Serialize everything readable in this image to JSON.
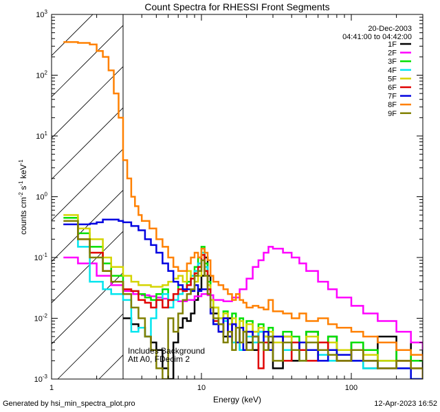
{
  "chart_data": {
    "type": "line",
    "title": "Count Spectra for RHESSI Front Segments",
    "xlabel": "Energy (keV)",
    "ylabel": "counts cm^-2 s^-1 keV^-1",
    "ylabel_parts": {
      "main": "counts cm",
      "e1": "-2",
      "s": " s",
      "e2": "-1",
      "k": " keV",
      "e3": "-1"
    },
    "xscale": "log",
    "yscale": "log",
    "xlim": [
      1,
      300
    ],
    "ylim": [
      0.001,
      1000
    ],
    "x_ticks": [
      {
        "value": 1,
        "label": "1"
      },
      {
        "value": 10,
        "label": "10"
      },
      {
        "value": 100,
        "label": "100"
      }
    ],
    "y_ticks": [
      {
        "value": 0.001,
        "base": "10",
        "exp": "-3"
      },
      {
        "value": 0.01,
        "base": "10",
        "exp": "-2"
      },
      {
        "value": 0.1,
        "base": "10",
        "exp": "-1"
      },
      {
        "value": 1,
        "base": "10",
        "exp": "0"
      },
      {
        "value": 10,
        "base": "10",
        "exp": "1"
      },
      {
        "value": 100,
        "base": "10",
        "exp": "2"
      },
      {
        "value": 1000,
        "base": "10",
        "exp": "3"
      }
    ],
    "date": "20-Dec-2003",
    "time_range": "04:41:00 to 04:42:00",
    "annotations": [
      "Includes Background",
      "Att A0, FDecim 2"
    ],
    "hatched_below_keV": 3,
    "series": [
      {
        "name": "1F",
        "color": "#000000",
        "x": [
          3,
          3.4,
          3.8,
          4.2,
          4.6,
          5,
          5.5,
          6,
          6.5,
          7,
          7.5,
          8,
          8.5,
          9,
          9.5,
          10,
          10.5,
          11,
          11.5,
          12,
          13,
          14,
          15,
          16,
          17,
          18,
          19,
          20,
          22,
          24,
          26,
          28,
          30,
          35,
          40,
          45,
          50,
          60,
          70,
          80,
          100,
          120,
          150,
          200,
          250,
          300
        ],
        "y": [
          0.01,
          0.008,
          0.007,
          0.005,
          0.004,
          0.003,
          0.0015,
          0.001,
          0.004,
          0.007,
          0.01,
          0.009,
          0.012,
          0.02,
          0.03,
          0.05,
          0.1,
          0.05,
          0.02,
          0.012,
          0.008,
          0.005,
          0.01,
          0.004,
          0.007,
          0.003,
          0.006,
          0.004,
          0.003,
          0.006,
          0.005,
          0.004,
          0.0015,
          0.005,
          0.002,
          0.004,
          0.006,
          0.003,
          0.005,
          0.002,
          0.004,
          0.0015,
          0.005,
          0.002,
          0.004,
          0.001
        ]
      },
      {
        "name": "2F",
        "color": "#ff00ff",
        "x": [
          1.2,
          1.5,
          2,
          2.5,
          3,
          3.5,
          4,
          4.5,
          5,
          5.5,
          6,
          7,
          8,
          9,
          10,
          11,
          12,
          14,
          16,
          18,
          20,
          22,
          24,
          26,
          28,
          30,
          35,
          40,
          45,
          50,
          60,
          70,
          80,
          100,
          120,
          150,
          200,
          250,
          300
        ],
        "y": [
          0.1,
          0.08,
          0.05,
          0.035,
          0.028,
          0.025,
          0.024,
          0.023,
          0.022,
          0.021,
          0.02,
          0.019,
          0.02,
          0.023,
          0.025,
          0.024,
          0.02,
          0.019,
          0.022,
          0.03,
          0.045,
          0.07,
          0.09,
          0.12,
          0.15,
          0.14,
          0.12,
          0.1,
          0.08,
          0.06,
          0.04,
          0.03,
          0.022,
          0.016,
          0.012,
          0.009,
          0.006,
          0.004,
          0.003
        ]
      },
      {
        "name": "3F",
        "color": "#00e000",
        "x": [
          1.2,
          1.5,
          1.8,
          2.2,
          2.5,
          3,
          3.4,
          3.8,
          4.2,
          4.6,
          5,
          5.5,
          6,
          6.5,
          7,
          7.5,
          8,
          8.5,
          9,
          9.5,
          10,
          10.5,
          11,
          11.5,
          12,
          13,
          14,
          15,
          16,
          17,
          18,
          19,
          20,
          22,
          24,
          26,
          28,
          30,
          35,
          40,
          45,
          50,
          60,
          70,
          80,
          100,
          120,
          150,
          200,
          250,
          300
        ],
        "y": [
          0.45,
          0.25,
          0.15,
          0.08,
          0.05,
          0.03,
          0.028,
          0.025,
          0.022,
          0.02,
          0.025,
          0.03,
          0.02,
          0.025,
          0.035,
          0.03,
          0.04,
          0.05,
          0.07,
          0.1,
          0.15,
          0.08,
          0.04,
          0.02,
          0.015,
          0.01,
          0.013,
          0.008,
          0.012,
          0.007,
          0.01,
          0.006,
          0.009,
          0.006,
          0.008,
          0.005,
          0.007,
          0.004,
          0.006,
          0.005,
          0.004,
          0.006,
          0.004,
          0.005,
          0.003,
          0.004,
          0.003,
          0.002,
          0.003,
          0.002,
          0.002
        ]
      },
      {
        "name": "4F",
        "color": "#00e5ee",
        "x": [
          1.2,
          1.5,
          1.8,
          2.2,
          2.5,
          3,
          3.4,
          3.8,
          4.2,
          4.6,
          5,
          5.5,
          6,
          6.5,
          7,
          7.5,
          8,
          8.5,
          9,
          9.5,
          10,
          10.5,
          11,
          11.5,
          12,
          13,
          14,
          15,
          16,
          17,
          18,
          19,
          20,
          22,
          24,
          26,
          28,
          30,
          35,
          40,
          45,
          50,
          60,
          70,
          80,
          100,
          120,
          150,
          200,
          250,
          300
        ],
        "y": [
          0.35,
          0.15,
          0.04,
          0.03,
          0.025,
          0.02,
          0.006,
          0.007,
          0.005,
          0.01,
          0.02,
          0.025,
          0.015,
          0.02,
          0.025,
          0.03,
          0.035,
          0.05,
          0.06,
          0.08,
          0.12,
          0.07,
          0.03,
          0.012,
          0.008,
          0.006,
          0.009,
          0.005,
          0.004,
          0.007,
          0.003,
          0.006,
          0.005,
          0.004,
          0.006,
          0.003,
          0.005,
          0.004,
          0.003,
          0.004,
          0.002,
          0.003,
          0.0025,
          0.002,
          0.003,
          0.002,
          0.0015,
          0.002,
          0.0015,
          0.001,
          0.001
        ]
      },
      {
        "name": "5F",
        "color": "#d4d400",
        "x": [
          1.2,
          1.5,
          1.8,
          2.2,
          2.5,
          3,
          3.4,
          3.8,
          4.2,
          4.6,
          5,
          5.5,
          6,
          6.5,
          7,
          7.5,
          8,
          8.5,
          9,
          9.5,
          10,
          10.5,
          11,
          11.5,
          12,
          13,
          14,
          15,
          16,
          17,
          18,
          19,
          20,
          22,
          24,
          26,
          28,
          30,
          35,
          40,
          45,
          50,
          60,
          70,
          80,
          100,
          120,
          150,
          200,
          250,
          300
        ],
        "y": [
          0.5,
          0.3,
          0.2,
          0.1,
          0.07,
          0.05,
          0.04,
          0.035,
          0.035,
          0.033,
          0.033,
          0.035,
          0.04,
          0.045,
          0.05,
          0.04,
          0.06,
          0.045,
          0.04,
          0.05,
          0.11,
          0.06,
          0.035,
          0.02,
          0.015,
          0.01,
          0.012,
          0.008,
          0.01,
          0.007,
          0.009,
          0.006,
          0.008,
          0.006,
          0.007,
          0.005,
          0.006,
          0.004,
          0.005,
          0.004,
          0.004,
          0.005,
          0.003,
          0.004,
          0.003,
          0.003,
          0.0025,
          0.002,
          0.002,
          0.0015,
          0.001
        ]
      },
      {
        "name": "6F",
        "color": "#e00000",
        "x": [
          1.2,
          1.5,
          1.8,
          2.2,
          2.5,
          3,
          3.4,
          3.8,
          4.2,
          4.6,
          5,
          5.5,
          6,
          6.5,
          7,
          7.5,
          8,
          8.5,
          9,
          9.5,
          10,
          10.5,
          11,
          11.5,
          12,
          13,
          14,
          15,
          16,
          17,
          18,
          19,
          20,
          22,
          24,
          26,
          28,
          30,
          35,
          40,
          45,
          50,
          60,
          70,
          80,
          100,
          120,
          150,
          200,
          250,
          300
        ],
        "y": [
          0.35,
          0.2,
          0.12,
          0.06,
          0.04,
          0.03,
          0.028,
          0.02,
          0.018,
          0.015,
          0.02,
          0.015,
          0.02,
          0.025,
          0.03,
          0.028,
          0.035,
          0.045,
          0.055,
          0.07,
          0.11,
          0.06,
          0.03,
          0.012,
          0.009,
          0.006,
          0.01,
          0.005,
          0.008,
          0.004,
          0.007,
          0.003,
          0.006,
          0.005,
          0.0015,
          0.004,
          0.003,
          0.005,
          0.002,
          0.004,
          0.003,
          0.002,
          0.004,
          0.0025,
          0.002,
          0.003,
          0.002,
          0.0015,
          0.002,
          0.0015,
          0.001
        ]
      },
      {
        "name": "7F",
        "color": "#0000e0",
        "x": [
          1.2,
          1.5,
          1.8,
          2,
          2.2,
          2.5,
          2.8,
          3,
          3.4,
          3.8,
          4.2,
          4.6,
          5,
          5.5,
          6,
          6.5,
          7,
          7.5,
          8,
          8.5,
          9,
          9.5,
          10,
          10.5,
          11,
          11.5,
          12,
          13,
          14,
          15,
          16,
          17,
          18,
          19,
          20,
          22,
          24,
          26,
          28,
          30,
          35,
          40,
          45,
          50,
          60,
          70,
          80,
          100,
          120,
          150,
          200,
          250,
          300
        ],
        "y": [
          0.35,
          0.35,
          0.36,
          0.38,
          0.42,
          0.42,
          0.4,
          0.38,
          0.33,
          0.28,
          0.2,
          0.16,
          0.12,
          0.08,
          0.06,
          0.04,
          0.035,
          0.03,
          0.03,
          0.028,
          0.035,
          0.028,
          0.03,
          0.03,
          0.025,
          0.012,
          0.008,
          0.006,
          0.01,
          0.005,
          0.008,
          0.004,
          0.007,
          0.003,
          0.006,
          0.005,
          0.004,
          0.006,
          0.003,
          0.005,
          0.004,
          0.003,
          0.004,
          0.003,
          0.002,
          0.003,
          0.0025,
          0.002,
          0.002,
          0.0015,
          0.0015,
          0.001,
          0.001
        ]
      },
      {
        "name": "8F",
        "color": "#ff8000",
        "x": [
          1.2,
          1.5,
          1.8,
          2,
          2.2,
          2.4,
          2.6,
          2.8,
          3,
          3.2,
          3.4,
          3.6,
          3.8,
          4,
          4.5,
          5,
          5.5,
          6,
          6.5,
          7,
          7.5,
          8,
          8.5,
          9,
          9.5,
          10,
          10.5,
          11,
          11.5,
          12,
          13,
          14,
          15,
          16,
          17,
          18,
          19,
          20,
          22,
          24,
          26,
          28,
          30,
          35,
          40,
          45,
          50,
          60,
          70,
          80,
          100,
          120,
          150,
          200,
          250,
          300
        ],
        "y": [
          350,
          340,
          320,
          250,
          200,
          120,
          50,
          20,
          4,
          2,
          1,
          0.7,
          0.5,
          0.4,
          0.3,
          0.2,
          0.15,
          0.1,
          0.07,
          0.06,
          0.06,
          0.08,
          0.1,
          0.12,
          0.1,
          0.14,
          0.12,
          0.09,
          0.05,
          0.04,
          0.035,
          0.03,
          0.025,
          0.02,
          0.025,
          0.02,
          0.018,
          0.015,
          0.016,
          0.015,
          0.014,
          0.02,
          0.013,
          0.012,
          0.01,
          0.012,
          0.009,
          0.01,
          0.008,
          0.007,
          0.006,
          0.005,
          0.004,
          0.003,
          0.0025,
          0.002
        ]
      },
      {
        "name": "9F",
        "color": "#808000",
        "x": [
          1.2,
          1.5,
          1.8,
          2.2,
          2.5,
          3,
          3.4,
          3.8,
          4.2,
          4.6,
          5,
          5.5,
          6,
          6.5,
          7,
          7.5,
          8,
          8.5,
          9,
          9.5,
          10,
          10.5,
          11,
          11.5,
          12,
          13,
          14,
          15,
          16,
          17,
          18,
          19,
          20,
          22,
          24,
          26,
          28,
          30,
          35,
          40,
          45,
          50,
          60,
          70,
          80,
          100,
          120,
          150,
          200,
          250,
          300
        ],
        "y": [
          0.4,
          0.2,
          0.1,
          0.06,
          0.04,
          0.025,
          0.015,
          0.01,
          0.005,
          0.003,
          0.0015,
          0.001,
          0.01,
          0.006,
          0.012,
          0.02,
          0.025,
          0.03,
          0.05,
          0.06,
          0.09,
          0.05,
          0.025,
          0.015,
          0.01,
          0.008,
          0.004,
          0.006,
          0.003,
          0.007,
          0.004,
          0.006,
          0.003,
          0.005,
          0.004,
          0.003,
          0.005,
          0.002,
          0.004,
          0.003,
          0.002,
          0.004,
          0.003,
          0.0025,
          0.002,
          0.003,
          0.002,
          0.0015,
          0.002,
          0.0015,
          0.001
        ]
      }
    ]
  },
  "footer": {
    "generated_by": "Generated by hsi_min_spectra_plot.pro",
    "timestamp": "12-Apr-2023 16:52"
  }
}
